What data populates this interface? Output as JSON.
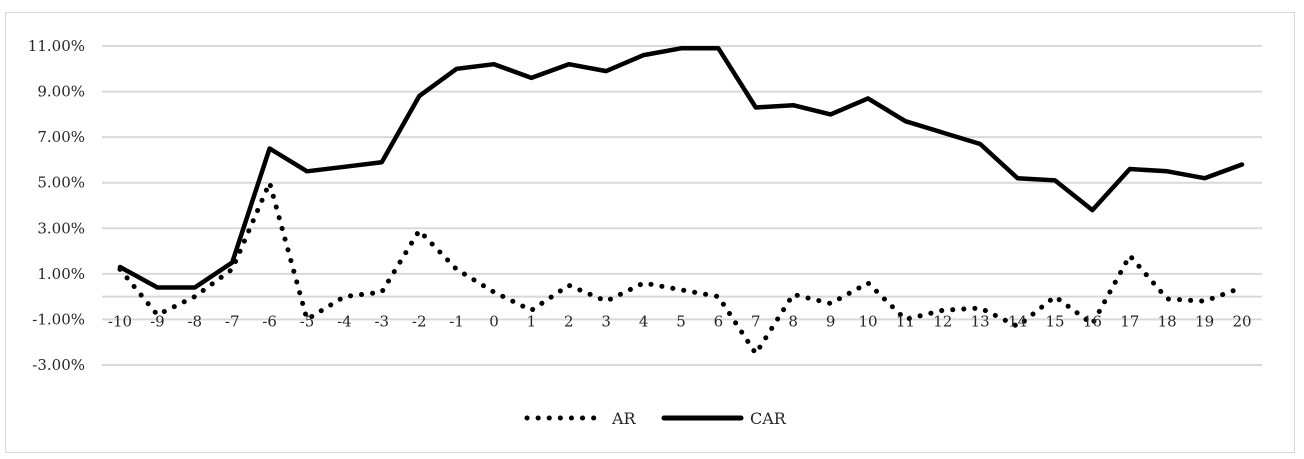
{
  "chart_data": {
    "type": "line",
    "title": "",
    "xlabel": "",
    "ylabel": "",
    "x": [
      -10,
      -9,
      -8,
      -7,
      -6,
      -5,
      -4,
      -3,
      -2,
      -1,
      0,
      1,
      2,
      3,
      4,
      5,
      6,
      7,
      8,
      9,
      10,
      11,
      12,
      13,
      14,
      15,
      16,
      17,
      18,
      19,
      20
    ],
    "x_tick_labels": [
      "-10",
      "-9",
      "-8",
      "-7",
      "-6",
      "-5",
      "-4",
      "-3",
      "-2",
      "-1",
      "0",
      "1",
      "2",
      "3",
      "4",
      "5",
      "6",
      "7",
      "8",
      "9",
      "10",
      "11",
      "12",
      "13",
      "14",
      "15",
      "16",
      "17",
      "18",
      "19",
      "20"
    ],
    "y_tick_values": [
      -3,
      -1,
      1,
      3,
      5,
      7,
      9,
      11
    ],
    "y_tick_labels": [
      "-3.00%",
      "-1.00%",
      "1.00%",
      "3.00%",
      "5.00%",
      "7.00%",
      "9.00%",
      "11.00%"
    ],
    "ylim": [
      -3,
      11
    ],
    "y_unit": "%",
    "grid": "horizontal",
    "legend_position": "bottom",
    "series": [
      {
        "name": "AR",
        "style": "dotted",
        "color": "#000000",
        "values": [
          1.2,
          -0.8,
          0.0,
          1.2,
          5.0,
          -1.0,
          0.0,
          0.2,
          2.9,
          1.2,
          0.2,
          -0.6,
          0.5,
          -0.2,
          0.6,
          0.3,
          0.0,
          -2.5,
          0.1,
          -0.3,
          0.6,
          -1.0,
          -0.6,
          -0.5,
          -1.3,
          0.0,
          -1.2,
          1.8,
          -0.1,
          -0.2,
          0.4
        ]
      },
      {
        "name": "CAR",
        "style": "solid",
        "color": "#000000",
        "values": [
          1.3,
          0.4,
          0.4,
          1.5,
          6.5,
          5.5,
          5.7,
          5.9,
          8.8,
          10.0,
          10.2,
          9.6,
          10.2,
          9.9,
          10.6,
          10.9,
          10.9,
          8.3,
          8.4,
          8.0,
          8.7,
          7.7,
          7.2,
          6.7,
          5.2,
          5.1,
          3.8,
          5.6,
          5.5,
          5.2,
          5.8
        ]
      }
    ]
  }
}
